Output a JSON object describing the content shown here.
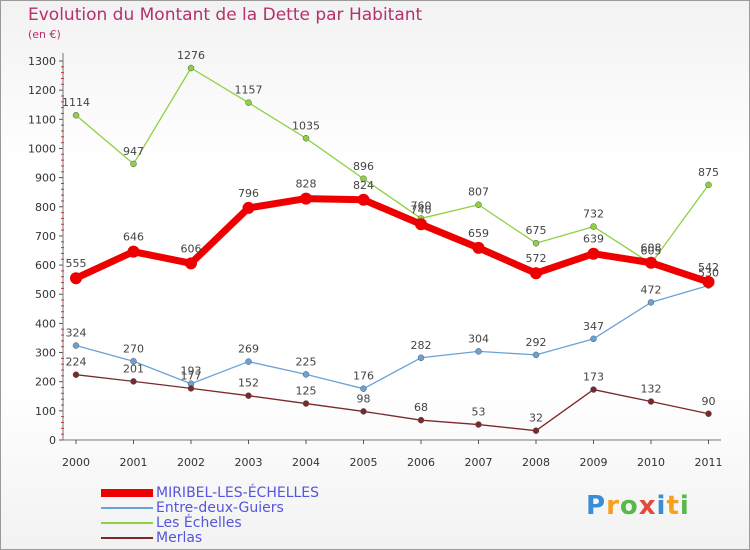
{
  "chart_data": {
    "type": "line",
    "title": "Evolution du Montant de la Dette par Habitant",
    "subtitle": "(en €)",
    "x": [
      "2000",
      "2001",
      "2002",
      "2003",
      "2004",
      "2005",
      "2006",
      "2007",
      "2008",
      "2009",
      "2010",
      "2011"
    ],
    "yticks": [
      0,
      100,
      200,
      300,
      400,
      500,
      600,
      700,
      800,
      900,
      1000,
      1100,
      1200,
      1300
    ],
    "ylim": [
      0,
      1300
    ],
    "grid": false,
    "legend_position": "bottom-left",
    "series": [
      {
        "name": "Les Échelles",
        "color": "#8fd044",
        "values": [
          1114,
          947,
          1276,
          1157,
          1035,
          896,
          760,
          807,
          675,
          732,
          605,
          875
        ]
      },
      {
        "name": "Entre-deux-Guiers",
        "color": "#6aa2d8",
        "values": [
          324,
          270,
          193,
          269,
          225,
          176,
          282,
          304,
          292,
          347,
          472,
          530
        ]
      },
      {
        "name": "Merlas",
        "color": "#7a2a2a",
        "values": [
          224,
          201,
          177,
          152,
          125,
          98,
          68,
          53,
          32,
          173,
          132,
          90
        ]
      },
      {
        "name": "MIRIBEL-LES-ÉCHELLES",
        "color": "#ee0000",
        "values": [
          555,
          646,
          606,
          796,
          828,
          824,
          740,
          659,
          572,
          639,
          608,
          542
        ]
      }
    ],
    "legend_order": [
      "MIRIBEL-LES-ÉCHELLES",
      "Entre-deux-Guiers",
      "Les Échelles",
      "Merlas"
    ]
  },
  "brand": {
    "letters": [
      "P",
      "r",
      "o",
      "x",
      "i",
      "t",
      "i"
    ],
    "colors": [
      "#3a8ed6",
      "#f5a01e",
      "#58b84a",
      "#e24a3a",
      "#3a8ed6",
      "#f5a01e",
      "#58b84a"
    ]
  }
}
